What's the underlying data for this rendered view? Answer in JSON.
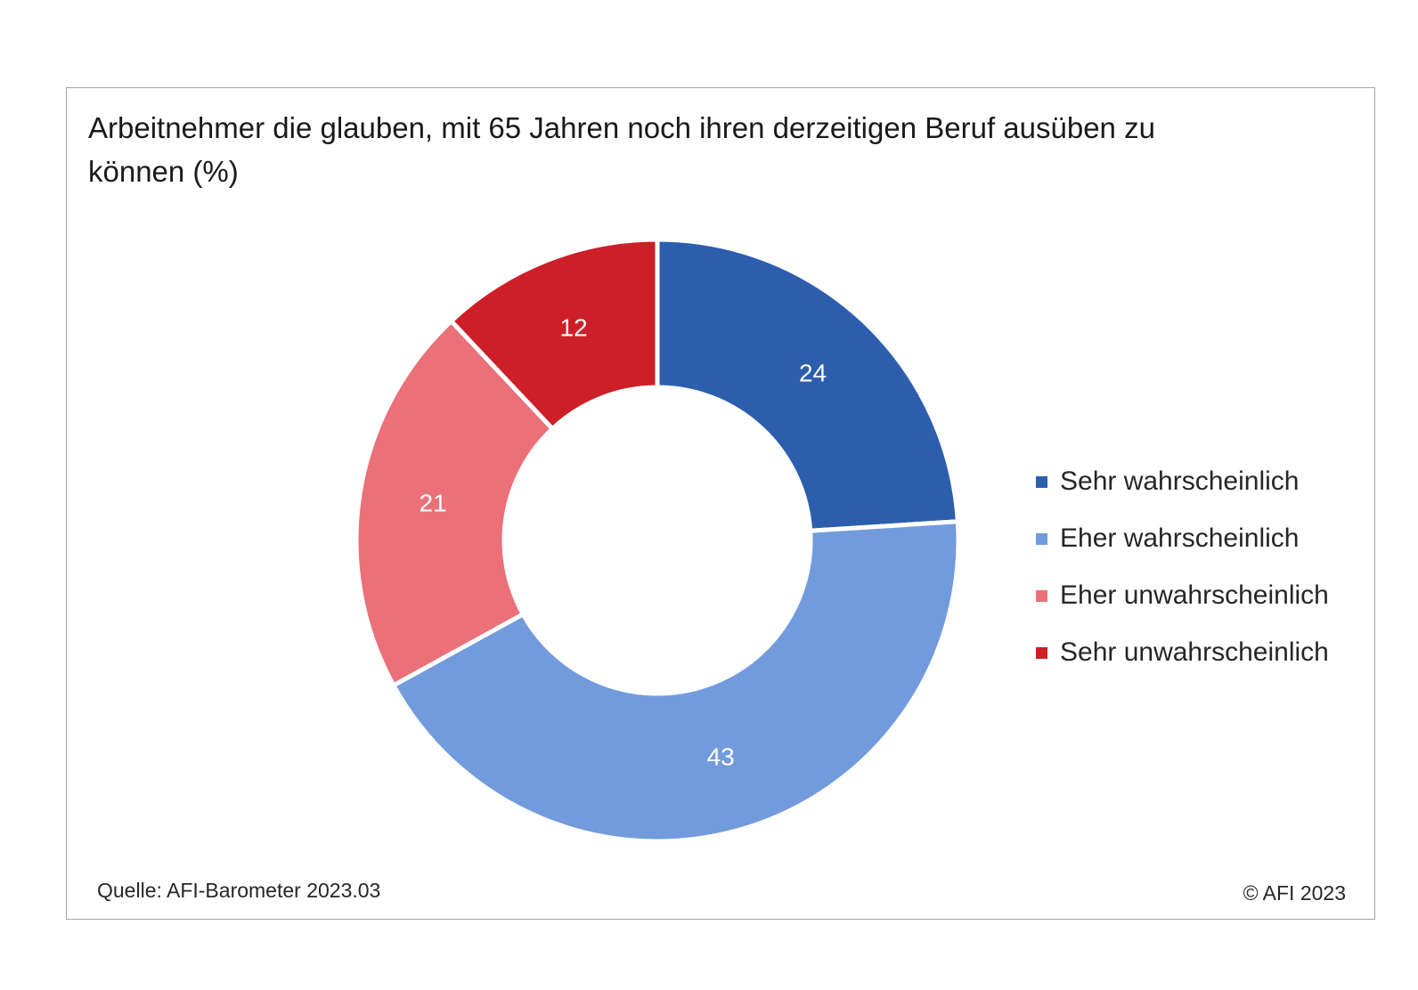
{
  "chart_data": {
    "type": "pie",
    "title": "Arbeitnehmer die glauben, mit 65 Jahren noch ihren derzeitigen Beruf ausüben zu können (%)",
    "donut": true,
    "start": "top, clockwise",
    "legend_position": "right",
    "slices": [
      {
        "label": "Sehr wahrscheinlich",
        "value": 24,
        "color": "#2c5ead"
      },
      {
        "label": "Eher wahrscheinlich",
        "value": 43,
        "color": "#729bdd"
      },
      {
        "label": "Eher unwahrscheinlich",
        "value": 21,
        "color": "#eb7078"
      },
      {
        "label": "Sehr unwahrscheinlich",
        "value": 12,
        "color": "#cc1f27"
      }
    ]
  },
  "footer": {
    "source": "Quelle: AFI-Barometer 2023.03",
    "copyright": "© AFI 2023"
  },
  "colors": {
    "frame_border": "#a6a6a6",
    "slice_label": "#ffffff"
  }
}
